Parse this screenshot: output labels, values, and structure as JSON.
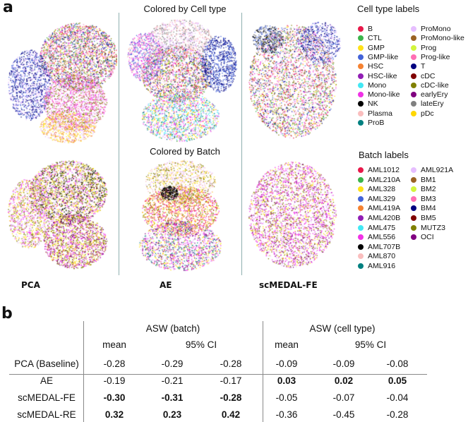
{
  "panel_a": {
    "label": "a",
    "title_celltype": "Colored by Cell type",
    "title_batch": "Colored by Batch",
    "methods": [
      "PCA",
      "AE",
      "scMEDAL-FE"
    ],
    "celltype_legend": {
      "title": "Cell type labels",
      "items": [
        {
          "label": "B",
          "color": "#e8194a"
        },
        {
          "label": "CTL",
          "color": "#3cb44b"
        },
        {
          "label": "GMP",
          "color": "#ffe119"
        },
        {
          "label": "GMP-like",
          "color": "#4363d8"
        },
        {
          "label": "HSC",
          "color": "#f58231"
        },
        {
          "label": "HSC-like",
          "color": "#911eb4"
        },
        {
          "label": "Mono",
          "color": "#42e8f4"
        },
        {
          "label": "Mono-like",
          "color": "#f032e6"
        },
        {
          "label": "NK",
          "color": "#000000"
        },
        {
          "label": "Plasma",
          "color": "#fabebe"
        },
        {
          "label": "ProB",
          "color": "#008080"
        },
        {
          "label": "ProMono",
          "color": "#e6beff"
        },
        {
          "label": "ProMono-like",
          "color": "#9a6324"
        },
        {
          "label": "Prog",
          "color": "#d2f53c"
        },
        {
          "label": "Prog-like",
          "color": "#ff6eb4"
        },
        {
          "label": "T",
          "color": "#000080"
        },
        {
          "label": "cDC",
          "color": "#800000"
        },
        {
          "label": "cDC-like",
          "color": "#808000"
        },
        {
          "label": "earlyEry",
          "color": "#800080"
        },
        {
          "label": "lateEry",
          "color": "#808080"
        },
        {
          "label": "pDc",
          "color": "#ffd700"
        }
      ]
    },
    "batch_legend": {
      "title": "Batch labels",
      "items": [
        {
          "label": "AML1012",
          "color": "#e8194a"
        },
        {
          "label": "AML210A",
          "color": "#3cb44b"
        },
        {
          "label": "AML328",
          "color": "#ffe119"
        },
        {
          "label": "AML329",
          "color": "#4363d8"
        },
        {
          "label": "AML419A",
          "color": "#f58231"
        },
        {
          "label": "AML420B",
          "color": "#911eb4"
        },
        {
          "label": "AML475",
          "color": "#42e8f4"
        },
        {
          "label": "AML556",
          "color": "#f032e6"
        },
        {
          "label": "AML707B",
          "color": "#000000"
        },
        {
          "label": "AML870",
          "color": "#fabebe"
        },
        {
          "label": "AML916",
          "color": "#008080"
        },
        {
          "label": "AML921A",
          "color": "#e6beff"
        },
        {
          "label": "BM1",
          "color": "#9a6324"
        },
        {
          "label": "BM2",
          "color": "#d2f53c"
        },
        {
          "label": "BM3",
          "color": "#ff6eb4"
        },
        {
          "label": "BM4",
          "color": "#000080"
        },
        {
          "label": "BM5",
          "color": "#800000"
        },
        {
          "label": "MUTZ3",
          "color": "#808000"
        },
        {
          "label": "OCI",
          "color": "#800080"
        }
      ]
    }
  },
  "panel_b": {
    "label": "b",
    "group_headers": [
      "ASW (batch)",
      "ASW (cell type)"
    ],
    "sub_headers": [
      "mean",
      "95% CI",
      "mean",
      "95% CI"
    ],
    "rows": [
      {
        "method": "PCA (Baseline)",
        "values": [
          "-0.28",
          "-0.29",
          "-0.28",
          "-0.09",
          "-0.09",
          "-0.08"
        ],
        "bold": [
          false,
          false,
          false,
          false,
          false,
          false
        ]
      },
      {
        "method": "AE",
        "values": [
          "-0.19",
          "-0.21",
          "-0.17",
          "0.03",
          "0.02",
          "0.05"
        ],
        "bold": [
          false,
          false,
          false,
          true,
          true,
          true
        ]
      },
      {
        "method": "scMEDAL-FE",
        "values": [
          "-0.30",
          "-0.31",
          "-0.28",
          "-0.05",
          "-0.07",
          "-0.04"
        ],
        "bold": [
          true,
          true,
          true,
          false,
          false,
          false
        ]
      },
      {
        "method": "scMEDAL-RE",
        "values": [
          "0.32",
          "0.23",
          "0.42",
          "-0.36",
          "-0.45",
          "-0.28"
        ],
        "bold": [
          true,
          true,
          true,
          false,
          false,
          false
        ]
      }
    ]
  }
}
